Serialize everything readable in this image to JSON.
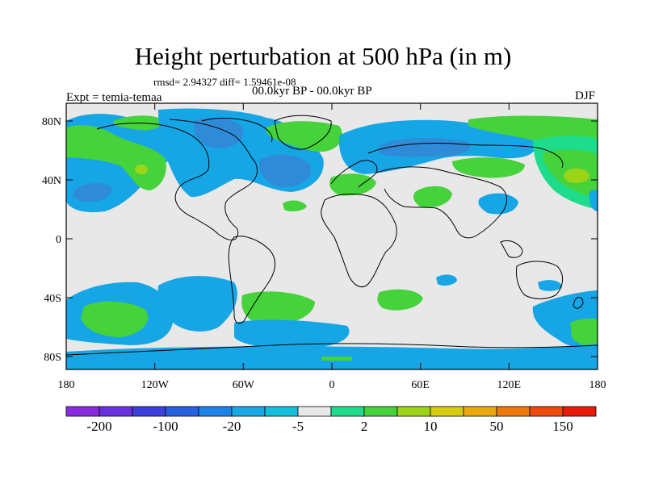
{
  "title": "Height perturbation at 500 hPa (in m)",
  "stats_line": "rmsd= 2.94327 diff= 1.59461e-08",
  "period_line": "00.0kyr BP - 00.0kyr BP",
  "expt_label": "Expt = temia-temaa",
  "season": "DJF",
  "lat_labels": [
    "80N",
    "40N",
    "0",
    "40S",
    "80S"
  ],
  "lon_labels": [
    "180",
    "120W",
    "60W",
    "0",
    "60E",
    "120E",
    "180"
  ],
  "colorbar": {
    "labels": [
      "-200",
      "-100",
      "-20",
      "-5",
      "2",
      "10",
      "50",
      "150"
    ],
    "colors": [
      "#8a2be2",
      "#6a2fe0",
      "#3a3fdd",
      "#2660e3",
      "#1c84e8",
      "#14a8e6",
      "#12c0de",
      "#e8e8e8",
      "#1fdc8c",
      "#45d23a",
      "#9cd417",
      "#d8cc10",
      "#e9a80e",
      "#ee7a0c",
      "#ee4a0a",
      "#e81a08"
    ]
  },
  "palette": {
    "blue": "#16a6e6",
    "deep_blue": "#2f8ad8",
    "green": "#46d23a",
    "teal": "#1fdc8c",
    "lime": "#9cd417",
    "neutral": "#e8e8e8"
  }
}
